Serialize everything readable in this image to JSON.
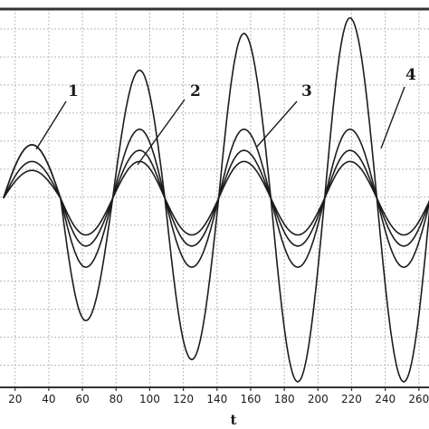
{
  "chart_data": {
    "type": "line",
    "xlabel": "t",
    "ylabel": "",
    "xlim": [
      11,
      266
    ],
    "ylim": [
      -1.7,
      1.7
    ],
    "grid": true,
    "x_ticks": [
      20,
      40,
      60,
      80,
      100,
      120,
      140,
      160,
      180,
      200,
      220,
      240,
      260
    ],
    "x_tick_labels": [
      "20",
      "40",
      "60",
      "80",
      "100",
      "120",
      "140",
      "160",
      "180",
      "200",
      "220",
      "240",
      "260"
    ],
    "annotations": [
      "1",
      "2",
      "3",
      "4"
    ],
    "series": [
      {
        "name": "1",
        "x": [
          13,
          30,
          47,
          62,
          78,
          94,
          109,
          125,
          141,
          156,
          172,
          188,
          204,
          219,
          235,
          251
        ],
        "y": [
          0,
          0.25,
          0,
          -0.33,
          0,
          0.33,
          0,
          -0.33,
          0,
          0.33,
          0,
          -0.33,
          0,
          0.33,
          0,
          -0.33
        ]
      },
      {
        "name": "2",
        "x": [
          13,
          30,
          47,
          62,
          78,
          94,
          109,
          125,
          141,
          156,
          172,
          188,
          204,
          219,
          235,
          251
        ],
        "y": [
          0,
          0.33,
          0,
          -0.43,
          0,
          0.43,
          0,
          -0.43,
          0,
          0.43,
          0,
          -0.43,
          0,
          0.43,
          0,
          -0.43
        ]
      },
      {
        "name": "3",
        "x": [
          13,
          30,
          47,
          62,
          78,
          94,
          109,
          125,
          141,
          156,
          172,
          188,
          204,
          219,
          235,
          251
        ],
        "y": [
          0,
          0.48,
          0,
          -0.62,
          0,
          0.62,
          0,
          -0.62,
          0,
          0.62,
          0,
          -0.62,
          0,
          0.62,
          0,
          -0.62
        ]
      },
      {
        "name": "4",
        "x": [
          13,
          30,
          47,
          62,
          78,
          94,
          109,
          125,
          141,
          156,
          172,
          188,
          204,
          219,
          235,
          251
        ],
        "y": [
          0,
          0.48,
          0,
          -1.1,
          0,
          1.15,
          0,
          -1.45,
          0,
          1.48,
          0,
          -1.65,
          0,
          1.62,
          0,
          -1.65
        ]
      }
    ]
  }
}
